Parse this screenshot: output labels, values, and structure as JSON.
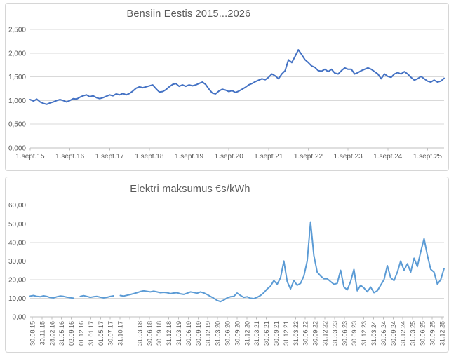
{
  "colors": {
    "petrol_line": "#4472C4",
    "electricity_line": "#5B9BD5",
    "gridline": "#D9D9D9",
    "axis_line": "#BFBFBF",
    "label_text": "#595959"
  },
  "chart_data": [
    {
      "type": "line",
      "title": "Bensiin Eestis 2015...2026",
      "ylabel": "",
      "xlabel": "",
      "ylim": [
        0,
        2.5
      ],
      "ytick_labels": [
        "0,000",
        "0,500",
        "1,000",
        "1,500",
        "2,000",
        "2,500"
      ],
      "x_labels": [
        "1.sept.15",
        "1.sept.16",
        "1.sept.17",
        "1.sept.18",
        "1.sept.19",
        "1.sept.20",
        "1.sept.21",
        "1.sept.22",
        "1.sept.23",
        "1.sept.24",
        "1.sept.25"
      ],
      "grid": true,
      "legend_position": "none",
      "color": "#4472C4",
      "values": [
        1.02,
        0.99,
        1.03,
        0.97,
        0.94,
        0.92,
        0.95,
        0.97,
        1.0,
        1.02,
        1.0,
        0.97,
        1.0,
        1.04,
        1.03,
        1.07,
        1.1,
        1.12,
        1.08,
        1.1,
        1.06,
        1.04,
        1.06,
        1.09,
        1.12,
        1.1,
        1.14,
        1.12,
        1.15,
        1.12,
        1.15,
        1.2,
        1.26,
        1.29,
        1.27,
        1.29,
        1.31,
        1.33,
        1.25,
        1.18,
        1.19,
        1.23,
        1.29,
        1.34,
        1.36,
        1.3,
        1.33,
        1.3,
        1.33,
        1.31,
        1.33,
        1.36,
        1.39,
        1.34,
        1.24,
        1.16,
        1.14,
        1.2,
        1.24,
        1.22,
        1.19,
        1.21,
        1.17,
        1.2,
        1.24,
        1.28,
        1.33,
        1.36,
        1.4,
        1.43,
        1.46,
        1.44,
        1.49,
        1.56,
        1.52,
        1.46,
        1.56,
        1.63,
        1.86,
        1.8,
        1.93,
        2.07,
        1.97,
        1.86,
        1.8,
        1.73,
        1.7,
        1.63,
        1.62,
        1.66,
        1.61,
        1.66,
        1.58,
        1.56,
        1.63,
        1.69,
        1.66,
        1.66,
        1.56,
        1.59,
        1.63,
        1.66,
        1.69,
        1.66,
        1.61,
        1.56,
        1.46,
        1.56,
        1.51,
        1.49,
        1.56,
        1.59,
        1.56,
        1.61,
        1.56,
        1.49,
        1.43,
        1.46,
        1.51,
        1.46,
        1.41,
        1.39,
        1.43,
        1.39,
        1.41,
        1.47
      ]
    },
    {
      "type": "line",
      "title": "Elektri maksumus €s/kWh",
      "ylabel": "",
      "xlabel": "",
      "ylim": [
        0,
        60
      ],
      "ytick_labels": [
        "0,00",
        "10,00",
        "20,00",
        "30,00",
        "40,00",
        "50,00",
        "60,00"
      ],
      "x_labels": [
        "30.08.15",
        "30.11.15",
        "28.02.16",
        "31.05.16",
        "02.09.16",
        "01.12.16",
        "31.01.17",
        "01.05.17",
        "30.07.17",
        "31.10.17",
        "",
        "31.03.18",
        "30.06.18",
        "30.09.18",
        "31.12.18",
        "31.03.19",
        "30.06.19",
        "30.09.19",
        "31.12.19",
        "31.03.20",
        "30.06.20",
        "30.09.20",
        "31.12.20",
        "31.03.21",
        "30.06.21",
        "30.09.21",
        "31.12.21",
        "31.03.22",
        "30.06.22",
        "30.09.22",
        "31.12.22",
        "31.03.23",
        "30.06.23",
        "30.09.23",
        "31.12.23",
        "31.03.24",
        "30.06.24",
        "30.09.24",
        "31.12.24",
        "31.03.25",
        "30.06.25",
        "30.09.25",
        "31.12.25"
      ],
      "grid": true,
      "legend_position": "none",
      "color": "#5B9BD5",
      "values": [
        11.2,
        11.5,
        11.0,
        10.8,
        11.3,
        11.0,
        10.4,
        10.2,
        10.8,
        11.2,
        11.0,
        10.6,
        10.3,
        10.0,
        null,
        11.0,
        11.4,
        11.0,
        10.5,
        10.8,
        11.0,
        10.6,
        10.2,
        10.5,
        11.0,
        11.3,
        null,
        11.5,
        11.2,
        11.6,
        12.0,
        12.5,
        13.0,
        13.6,
        14.0,
        13.7,
        13.4,
        13.8,
        13.4,
        13.0,
        13.2,
        13.0,
        12.5,
        12.8,
        13.0,
        12.4,
        12.1,
        12.7,
        13.4,
        13.1,
        12.7,
        13.4,
        12.9,
        12.0,
        11.0,
        10.0,
        8.8,
        8.2,
        9.0,
        10.2,
        10.8,
        11.0,
        12.8,
        11.5,
        10.5,
        10.8,
        10.0,
        9.8,
        10.5,
        11.5,
        13.0,
        15.0,
        16.5,
        19.5,
        17.5,
        21.0,
        30.0,
        19.0,
        15.0,
        19.5,
        17.0,
        18.0,
        22.0,
        30.0,
        51.0,
        33.0,
        24.0,
        22.0,
        20.5,
        20.5,
        19.0,
        17.5,
        18.0,
        25.0,
        16.0,
        14.5,
        19.0,
        25.5,
        14.0,
        17.0,
        15.5,
        13.5,
        16.0,
        13.0,
        14.0,
        17.0,
        20.0,
        27.5,
        21.0,
        19.5,
        24.0,
        30.0,
        25.0,
        28.5,
        24.0,
        31.5,
        27.0,
        35.0,
        42.0,
        33.0,
        25.5,
        24.0,
        17.5,
        20.0,
        26.0
      ]
    }
  ]
}
